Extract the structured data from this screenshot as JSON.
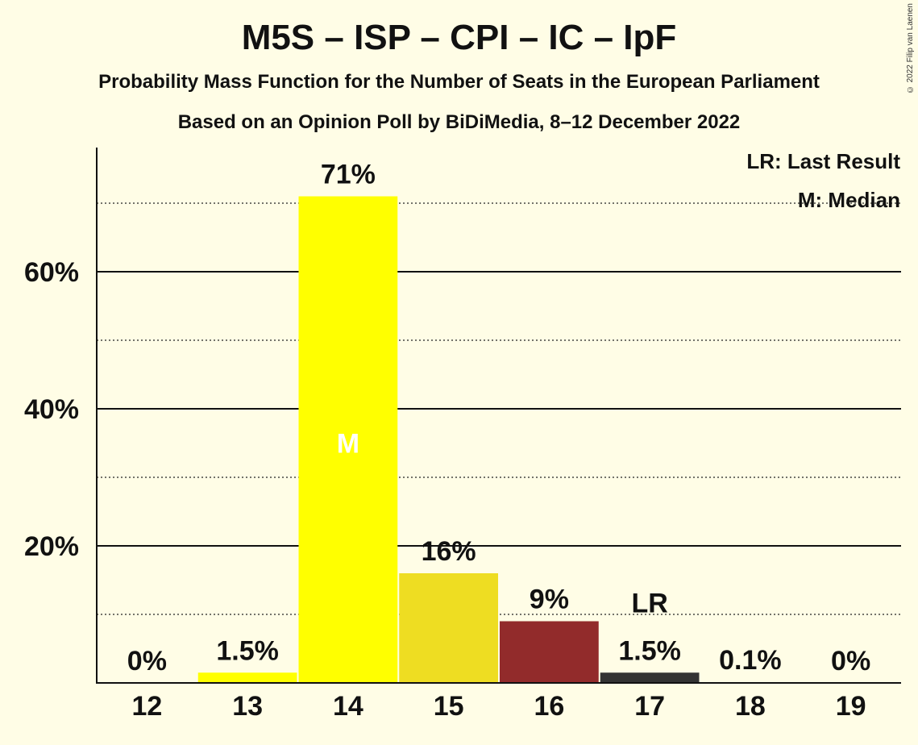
{
  "chart_data": {
    "type": "bar",
    "title": "M5S – ISP – CPI – IC – IpF",
    "subtitle": "Probability Mass Function for the Number of Seats in the European Parliament",
    "subtitle2": "Based on an Opinion Poll by BiDiMedia, 8–12 December 2022",
    "categories": [
      "12",
      "13",
      "14",
      "15",
      "16",
      "17",
      "18",
      "19"
    ],
    "values": [
      0,
      1.5,
      71,
      16,
      9,
      1.5,
      0.1,
      0
    ],
    "value_labels": [
      "0%",
      "1.5%",
      "71%",
      "16%",
      "9%",
      "1.5%",
      "0.1%",
      "0%"
    ],
    "bar_colors": [
      "#FFFF00",
      "#FFFF00",
      "#FFFF00",
      "#EEDD22",
      "#922B2B",
      "#333333",
      "#333333",
      "#333333"
    ],
    "ylim": [
      0,
      78
    ],
    "yticks": [
      20,
      40,
      60
    ],
    "ytick_labels": [
      "20%",
      "40%",
      "60%"
    ],
    "minor_gridlines": [
      10,
      30,
      50,
      70
    ],
    "median_category": "14",
    "median_marker": "M",
    "last_result_category": "17",
    "last_result_marker": "LR",
    "legend": [
      "LR: Last Result",
      "M: Median"
    ],
    "legend_position": "top-right",
    "xlabel": "",
    "ylabel": ""
  },
  "copyright": "© 2022 Filip van Laenen"
}
